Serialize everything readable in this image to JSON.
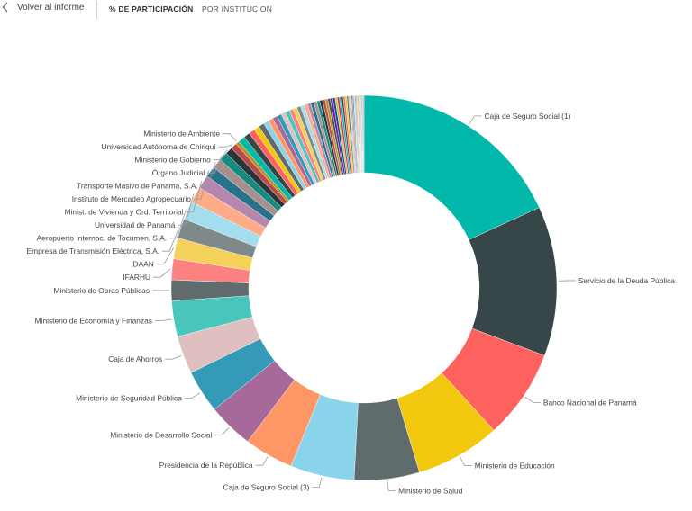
{
  "nav": {
    "back_label": "Volver al informe",
    "tabs": [
      {
        "label": "% DE PARTICIPACIÓN",
        "active": true
      },
      {
        "label": "POR INSTITUCION",
        "active": false
      }
    ]
  },
  "chart_data": {
    "type": "pie",
    "donut": true,
    "legend": "none",
    "labeled": [
      {
        "label": "Caja de Seguro Social (1)",
        "value": 17.6,
        "color": "#01B8AA"
      },
      {
        "label": "Servicio de la Deuda Pública",
        "value": 12.2,
        "color": "#374649"
      },
      {
        "label": "Banco Nacional de Panamá",
        "value": 7.3,
        "color": "#FD625E"
      },
      {
        "label": "Ministerio de Educación",
        "value": 6.9,
        "color": "#F2C80F"
      },
      {
        "label": "Ministerio de Salud",
        "value": 5.3,
        "color": "#5F6B6D"
      },
      {
        "label": "Caja de Seguro Social (3)",
        "value": 5.2,
        "color": "#8AD4EB"
      },
      {
        "label": "Presidencia de la República",
        "value": 4.0,
        "color": "#FE9666"
      },
      {
        "label": "Ministerio de Desarrollo Social",
        "value": 3.7,
        "color": "#A66999"
      },
      {
        "label": "Ministerio de Seguridad Pública",
        "value": 3.5,
        "color": "#3599B8"
      },
      {
        "label": "Caja de Ahorros",
        "value": 3.1,
        "color": "#DFBFBF"
      },
      {
        "label": "Ministerio de Economía y Finanzas",
        "value": 2.9,
        "color": "#4AC5BB"
      },
      {
        "label": "Ministerio de Obras Públicas",
        "value": 1.7,
        "color": "#5F6B6D"
      },
      {
        "label": "IFARHU",
        "value": 1.7,
        "color": "#FB8281"
      },
      {
        "label": "IDAAN",
        "value": 1.7,
        "color": "#F4D25A"
      },
      {
        "label": "Empresa de Transmisión Eléctrica, S.A.",
        "value": 1.6,
        "color": "#7F898A"
      },
      {
        "label": "Aeropuerto Internac. de Tocumen, S.A.",
        "value": 1.5,
        "color": "#A4DDEE"
      },
      {
        "label": "Universidad de Panamá",
        "value": 1.3,
        "color": "#FDAB89"
      },
      {
        "label": "Minist. de Vivienda y Ord. Territorial",
        "value": 1.1,
        "color": "#B687AC"
      },
      {
        "label": "Instituto de Mercadeo Agropecuario",
        "value": 0.9,
        "color": "#28738A"
      },
      {
        "label": "Transporte Masivo de Panamá, S.A.",
        "value": 0.8,
        "color": "#A78F8F"
      },
      {
        "label": "Órgano Judicial",
        "value": 0.7,
        "color": "#168980"
      },
      {
        "label": "Ministerio de Gobierno",
        "value": 0.6,
        "color": "#293537"
      },
      {
        "label": "Universidad Autónoma de Chiriquí",
        "value": 0.5,
        "color": "#BB4A4A"
      },
      {
        "label": "Ministerio de Ambiente",
        "value": 0.3,
        "color": "#B59525"
      }
    ],
    "other_slices": {
      "values": [
        0.55,
        0.5,
        0.5,
        0.45,
        0.45,
        0.42,
        0.4,
        0.4,
        0.38,
        0.36,
        0.35,
        0.33,
        0.32,
        0.3,
        0.3,
        0.28,
        0.27,
        0.26,
        0.25,
        0.24,
        0.23,
        0.22,
        0.21,
        0.2,
        0.2,
        0.19,
        0.18,
        0.17,
        0.16,
        0.15,
        0.15,
        0.14,
        0.13,
        0.12,
        0.11,
        0.1,
        0.1,
        0.09,
        0.09,
        0.08,
        0.08,
        0.07,
        0.07,
        0.06,
        0.06,
        0.05,
        0.05,
        0.05,
        0.04,
        0.04
      ],
      "colors": [
        "#01B8AA",
        "#374649",
        "#FD625E",
        "#F2C80F",
        "#5F6B6D",
        "#8AD4EB",
        "#FE9666",
        "#A66999",
        "#3599B8",
        "#DFBFBF",
        "#4AC5BB",
        "#FB8281",
        "#F4D25A",
        "#7F898A",
        "#A4DDEE",
        "#FDAB89",
        "#B687AC",
        "#28738A",
        "#A78F8F",
        "#168980",
        "#293537",
        "#BB4A4A",
        "#B59525",
        "#475052",
        "#6A1B9A",
        "#0D47A1",
        "#C0CA33",
        "#E91E63"
      ]
    }
  }
}
